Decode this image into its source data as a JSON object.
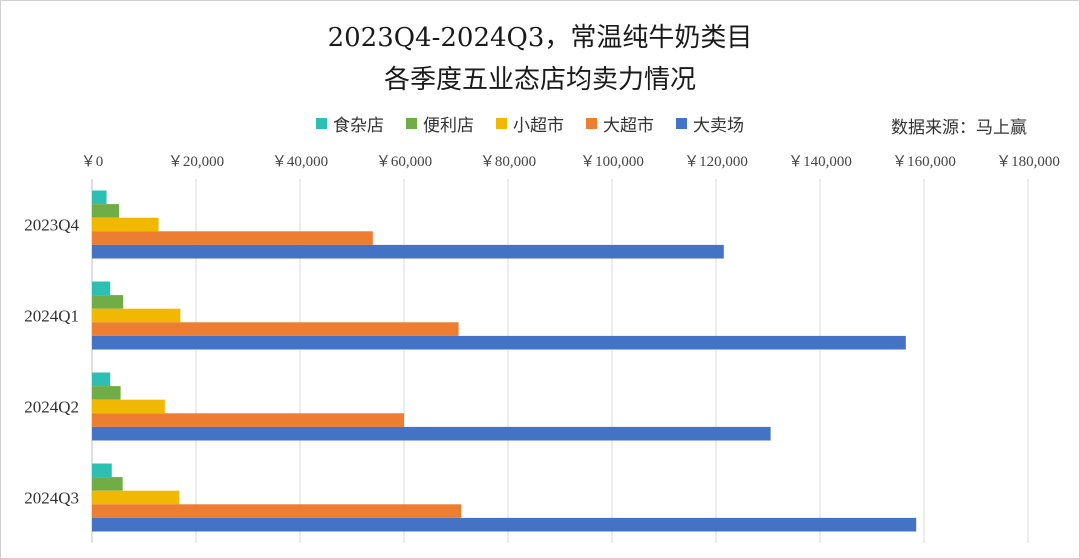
{
  "chart_data": {
    "type": "bar",
    "orientation": "horizontal",
    "title_line1": "2023Q4-2024Q3，常温纯牛奶类目",
    "title_line2": "各季度五业态店均卖力情况",
    "source": "数据来源：马上赢",
    "categories": [
      "2023Q4",
      "2024Q1",
      "2024Q2",
      "2024Q3"
    ],
    "x_ticks": [
      "￥0",
      "￥20,000",
      "￥40,000",
      "￥60,000",
      "￥80,000",
      "￥100,000",
      "￥120,000",
      "￥140,000",
      "￥160,000",
      "￥180,000"
    ],
    "xlim": [
      0,
      180000
    ],
    "grid": "vertical",
    "legend_position": "top",
    "series": [
      {
        "name": "食杂店",
        "color": "#2dbfb4",
        "values": [
          2800,
          3500,
          3500,
          3800
        ]
      },
      {
        "name": "便利店",
        "color": "#70ad47",
        "values": [
          5200,
          6000,
          5500,
          5900
        ]
      },
      {
        "name": "小超市",
        "color": "#f0b800",
        "values": [
          12800,
          17000,
          14000,
          16800
        ]
      },
      {
        "name": "大超市",
        "color": "#ed7d31",
        "values": [
          54000,
          70500,
          60000,
          71000
        ]
      },
      {
        "name": "大卖场",
        "color": "#4472c4",
        "values": [
          121500,
          156500,
          130500,
          158500
        ]
      }
    ]
  }
}
